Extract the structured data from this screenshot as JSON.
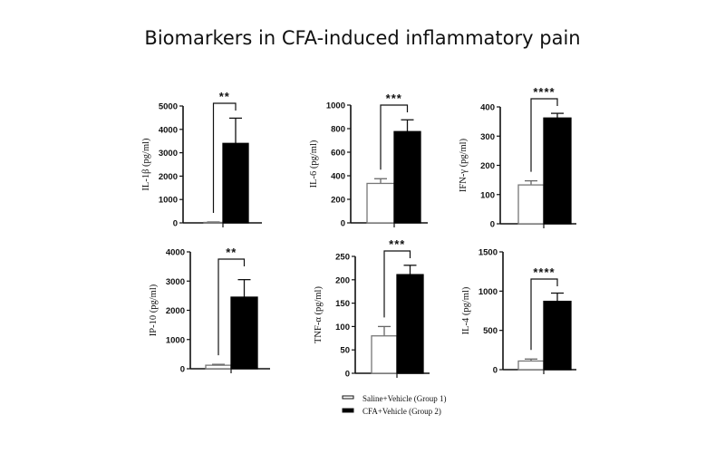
{
  "title": "Biomarkers in CFA-induced inflammatory pain",
  "chart_data": [
    {
      "type": "bar",
      "ylabel": "IL-1β (pg/ml)",
      "ylim": [
        0,
        5000
      ],
      "yticks": [
        0,
        1000,
        2000,
        3000,
        4000,
        5000
      ],
      "series": [
        {
          "name": "Saline+Vehicle (Group 1)",
          "value": 20,
          "error": 20
        },
        {
          "name": "CFA+Vehicle (Group 2)",
          "value": 3400,
          "error": 1080
        }
      ],
      "significance": "**"
    },
    {
      "type": "bar",
      "ylabel": "IL-6 (pg/ml)",
      "ylim": [
        0,
        1000
      ],
      "yticks": [
        0,
        200,
        400,
        600,
        800,
        1000
      ],
      "series": [
        {
          "name": "Saline+Vehicle (Group 1)",
          "value": 335,
          "error": 40
        },
        {
          "name": "CFA+Vehicle (Group 2)",
          "value": 775,
          "error": 100
        }
      ],
      "significance": "***"
    },
    {
      "type": "bar",
      "ylabel": "IFN-γ (pg/ml)",
      "ylim": [
        0,
        400
      ],
      "yticks": [
        0,
        100,
        200,
        300,
        400
      ],
      "series": [
        {
          "name": "Saline+Vehicle (Group 1)",
          "value": 133,
          "error": 14
        },
        {
          "name": "CFA+Vehicle (Group 2)",
          "value": 362,
          "error": 16
        }
      ],
      "significance": "****"
    },
    {
      "type": "bar",
      "ylabel": "IP-10 (pg/ml)",
      "ylim": [
        0,
        4000
      ],
      "yticks": [
        0,
        1000,
        2000,
        3000,
        4000
      ],
      "series": [
        {
          "name": "Saline+Vehicle (Group 1)",
          "value": 120,
          "error": 30
        },
        {
          "name": "CFA+Vehicle (Group 2)",
          "value": 2450,
          "error": 600
        }
      ],
      "significance": "**"
    },
    {
      "type": "bar",
      "ylabel": "TNF-α (pg/ml)",
      "ylim": [
        0,
        250
      ],
      "yticks": [
        0,
        50,
        100,
        150,
        200,
        250
      ],
      "series": [
        {
          "name": "Saline+Vehicle (Group 1)",
          "value": 80,
          "error": 20
        },
        {
          "name": "CFA+Vehicle (Group 2)",
          "value": 211,
          "error": 20
        }
      ],
      "significance": "***"
    },
    {
      "type": "bar",
      "ylabel": "IL-4 (pg/ml)",
      "ylim": [
        0,
        1500
      ],
      "yticks": [
        0,
        500,
        1000,
        1500
      ],
      "series": [
        {
          "name": "Saline+Vehicle (Group 1)",
          "value": 110,
          "error": 25
        },
        {
          "name": "CFA+Vehicle (Group 2)",
          "value": 870,
          "error": 105
        }
      ],
      "significance": "****"
    }
  ],
  "legend": {
    "placement": "bottom-center",
    "items": [
      {
        "label": "Saline+Vehicle (Group 1)",
        "color": "#ffffff"
      },
      {
        "label": "CFA+Vehicle (Group 2)",
        "color": "#000000"
      }
    ]
  }
}
